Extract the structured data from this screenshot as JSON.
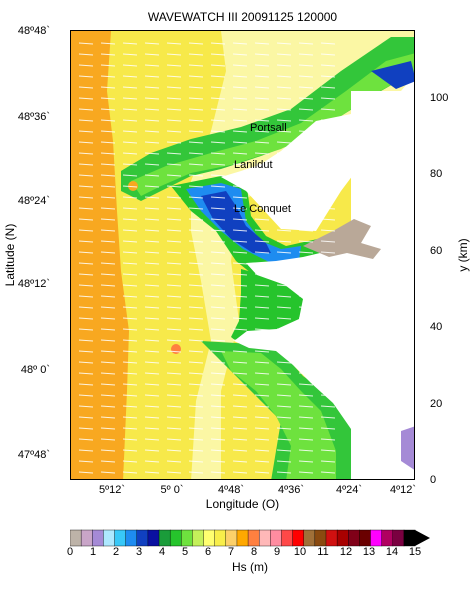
{
  "title": "WAVEWATCH III 20091125  120000",
  "axes": {
    "left_label": "Latitude (N)",
    "right_label": "y (km)",
    "bottom_label": "Longitude (O)",
    "lat_ticks": [
      "48º48`",
      "48º36`",
      "48º24`",
      "48º12`",
      "48º 0`",
      "47º48`"
    ],
    "lon_ticks": [
      "5º12`",
      "5º 0`",
      "4º48`",
      "4º36`",
      "4º24`",
      "4º12`"
    ],
    "y_ticks": [
      "0",
      "20",
      "40",
      "60",
      "80",
      "100"
    ]
  },
  "places": [
    {
      "name": "Portsall"
    },
    {
      "name": "Lanildut"
    },
    {
      "name": "Le Conquet"
    }
  ],
  "colorbar": {
    "label": "Hs (m)",
    "tick_labels": [
      "0",
      "1",
      "2",
      "3",
      "4",
      "5",
      "6",
      "7",
      "8",
      "9",
      "10",
      "11",
      "12",
      "13",
      "14",
      "15"
    ],
    "colors": [
      "#bdb3a8",
      "#c9a5c8",
      "#a58ad6",
      "#aee8ff",
      "#38c8f8",
      "#1e8cf0",
      "#1040c0",
      "#0a10a0",
      "#1a9c3a",
      "#26c42c",
      "#6ee23e",
      "#c4f05a",
      "#ffff70",
      "#f8ee4a",
      "#fcd06a",
      "#ffa800",
      "#ff8040",
      "#ffb8b8",
      "#ff8ca0",
      "#ff4848",
      "#ff0000",
      "#a07038",
      "#8a4a10",
      "#d01010",
      "#a80000",
      "#800018",
      "#6a0000",
      "#ff00ff",
      "#b00060",
      "#7a0040",
      "#000000"
    ]
  },
  "colors": {
    "deep_orange": "#f8a820",
    "mid_yellow": "#f7e94a",
    "light_yellow": "#fbf7a4",
    "green": "#33c63a",
    "land": "#ffffff",
    "rock": "#b9a898"
  }
}
